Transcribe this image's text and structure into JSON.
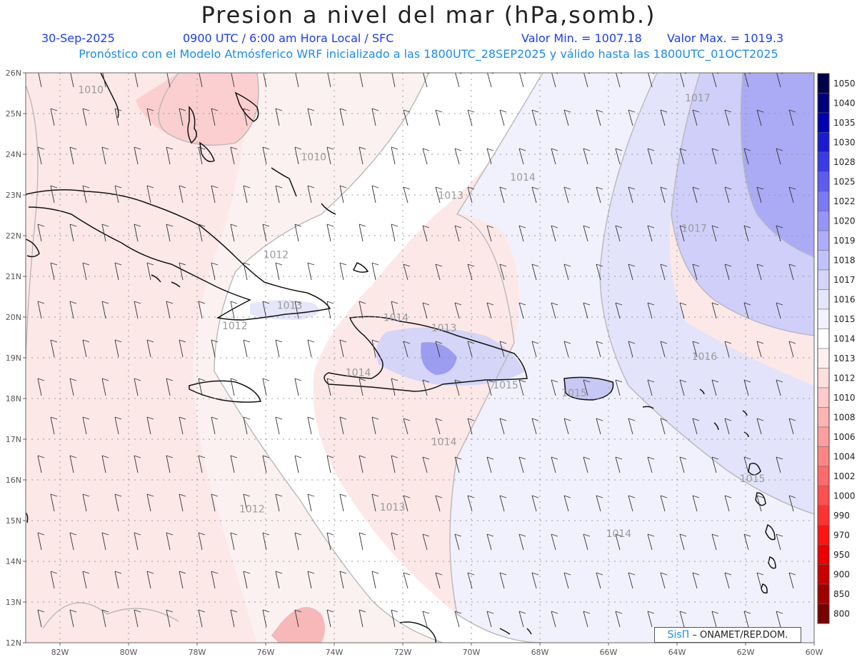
{
  "header": {
    "title": "Presion a nivel del mar (hPa,somb.)",
    "date": "30-Sep-2025",
    "time": "0900 UTC / 6:00 am Hora Local / SFC",
    "min": "Valor Min. = 1007.18",
    "max": "Valor Max. = 1019.3",
    "description": "Pronóstico con el Modelo Atmósferico WRF inicializado a las 1800UTC_28SEP2025 y válido hasta las  1800UTC_01OCT2025"
  },
  "axes": {
    "lat_labels": [
      "26N",
      "25N",
      "24N",
      "23N",
      "22N",
      "21N",
      "20N",
      "19N",
      "18N",
      "17N",
      "16N",
      "15N",
      "14N",
      "13N",
      "12N"
    ],
    "lon_labels": [
      "82W",
      "80W",
      "78W",
      "76W",
      "74W",
      "72W",
      "70W",
      "68W",
      "66W",
      "64W",
      "62W",
      "60W"
    ]
  },
  "colorbar": {
    "labels": [
      "1050",
      "1040",
      "1035",
      "1030",
      "1028",
      "1025",
      "1022",
      "1020",
      "1019",
      "1018",
      "1017",
      "1016",
      "1015",
      "1014",
      "1013",
      "1012",
      "1010",
      "1008",
      "1006",
      "1004",
      "1002",
      "1000",
      "990",
      "970",
      "950",
      "900",
      "850",
      "800"
    ],
    "colors": [
      "#00004a",
      "#00007e",
      "#0000b0",
      "#1a1ad0",
      "#3a3ae6",
      "#5c5cf0",
      "#7a7af5",
      "#9595f8",
      "#adadf9",
      "#c2c2fa",
      "#d5d5fb",
      "#e5e5fc",
      "#f2f2fd",
      "#ffffff",
      "#fff0f0",
      "#ffdede",
      "#ffcaca",
      "#ffb4b4",
      "#ff9e9e",
      "#ff8484",
      "#ff6a6a",
      "#ff4f4f",
      "#ff3232",
      "#ff1414",
      "#ec0000",
      "#c80000",
      "#a00000",
      "#780000"
    ]
  },
  "contour_labels": [
    {
      "text": "1010",
      "lon": -81.1,
      "lat": 25.5
    },
    {
      "text": "1010",
      "lon": -74.6,
      "lat": 23.85
    },
    {
      "text": "1013",
      "lon": -70.6,
      "lat": 22.9
    },
    {
      "text": "1014",
      "lon": -68.5,
      "lat": 23.35
    },
    {
      "text": "1017",
      "lon": -63.4,
      "lat": 25.3
    },
    {
      "text": "1017",
      "lon": -63.5,
      "lat": 22.1
    },
    {
      "text": "1012",
      "lon": -75.7,
      "lat": 21.45
    },
    {
      "text": "1013",
      "lon": -75.3,
      "lat": 20.2
    },
    {
      "text": "1012",
      "lon": -76.9,
      "lat": 19.7
    },
    {
      "text": "1014",
      "lon": -72.2,
      "lat": 19.9
    },
    {
      "text": "1013",
      "lon": -70.8,
      "lat": 19.65
    },
    {
      "text": "1014",
      "lon": -73.3,
      "lat": 18.55
    },
    {
      "text": "1015",
      "lon": -69.0,
      "lat": 18.25
    },
    {
      "text": "1015",
      "lon": -67.0,
      "lat": 18.05
    },
    {
      "text": "1016",
      "lon": -63.2,
      "lat": 18.95
    },
    {
      "text": "1014",
      "lon": -70.8,
      "lat": 16.85
    },
    {
      "text": "1015",
      "lon": -61.8,
      "lat": 15.95
    },
    {
      "text": "1012",
      "lon": -76.4,
      "lat": 15.2
    },
    {
      "text": "1013",
      "lon": -72.3,
      "lat": 15.25
    },
    {
      "text": "1014",
      "lon": -65.7,
      "lat": 14.6
    }
  ],
  "credit": {
    "brand": "SisΠ",
    "text": " – ONAMET/REP.DOM."
  }
}
